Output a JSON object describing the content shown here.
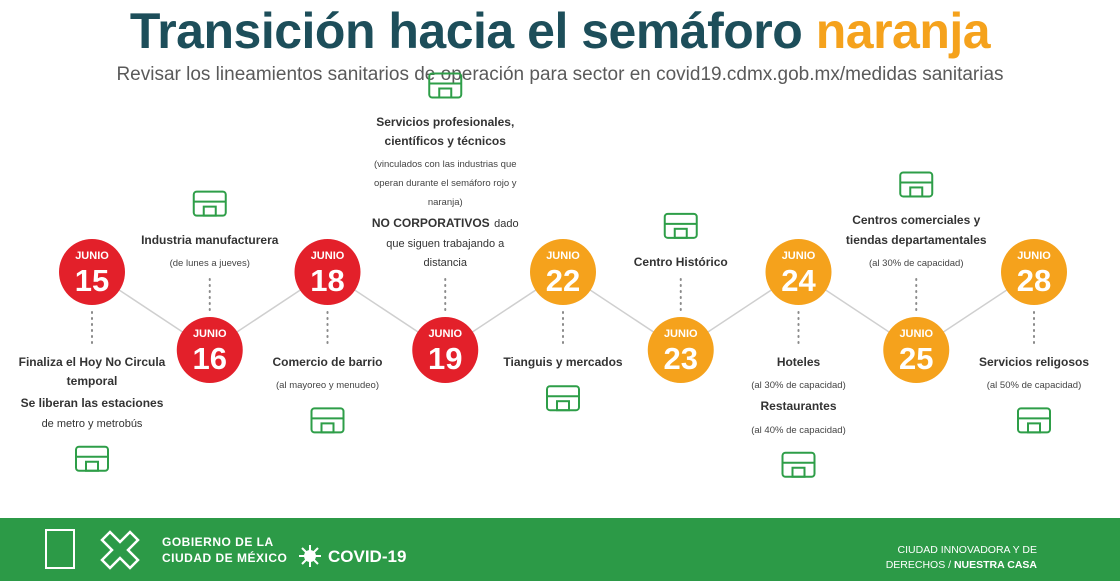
{
  "header": {
    "title": "Transición hacia el semáforo",
    "title_highlight": "naranja",
    "subtitle": "Revisar los lineamientos sanitarios de operación para sector en covid19.cdmx.gob.mx/medidas sanitarias"
  },
  "timeline": {
    "nodes": [
      {
        "month": "JUNIO",
        "day": "15",
        "color": "#e3202a",
        "lines": [
          [
            {
              "text": "Finaliza el Hoy No Circula temporal",
              "style": "b"
            }
          ],
          [
            {
              "text": "Se liberan las estaciones",
              "style": "b"
            },
            {
              "text": "de metro y metrobús",
              "style": "n"
            }
          ]
        ]
      },
      {
        "month": "JUNIO",
        "day": "16",
        "color": "#e3202a",
        "lines": [
          [
            {
              "text": "Industria manufacturera",
              "style": "b"
            }
          ],
          [
            {
              "text": "(de lunes a jueves)",
              "style": "s"
            }
          ]
        ]
      },
      {
        "month": "JUNIO",
        "day": "18",
        "color": "#e3202a",
        "lines": [
          [
            {
              "text": "Comercio de barrio",
              "style": "b"
            }
          ],
          [
            {
              "text": "(al mayoreo y menudeo)",
              "style": "s"
            }
          ]
        ]
      },
      {
        "month": "JUNIO",
        "day": "19",
        "color": "#e3202a",
        "lines": [
          [
            {
              "text": "Servicios profesionales, científicos y técnicos",
              "style": "b"
            }
          ],
          [
            {
              "text": "(vinculados con las industrias que operan durante el semáforo rojo y naranja)",
              "style": "s"
            }
          ],
          [
            {
              "text": "NO CORPORATIVOS",
              "style": "b"
            },
            {
              "text": "dado que siguen trabajando a distancia",
              "style": "n"
            }
          ]
        ]
      },
      {
        "month": "JUNIO",
        "day": "22",
        "color": "#f5a21c",
        "lines": [
          [
            {
              "text": "Tianguis y mercados",
              "style": "b"
            }
          ]
        ]
      },
      {
        "month": "JUNIO",
        "day": "23",
        "color": "#f5a21c",
        "lines": [
          [
            {
              "text": "Centro Histórico",
              "style": "b"
            }
          ]
        ]
      },
      {
        "month": "JUNIO",
        "day": "24",
        "color": "#f5a21c",
        "lines": [
          [
            {
              "text": "Hoteles",
              "style": "b"
            }
          ],
          [
            {
              "text": "(al 30% de capacidad)",
              "style": "s"
            }
          ],
          [
            {
              "text": "Restaurantes",
              "style": "b"
            }
          ],
          [
            {
              "text": "(al 40% de capacidad)",
              "style": "s"
            }
          ]
        ]
      },
      {
        "month": "JUNIO",
        "day": "25",
        "color": "#f5a21c",
        "lines": [
          [
            {
              "text": "Centros comerciales y tiendas departamentales",
              "style": "b"
            }
          ],
          [
            {
              "text": "(al 30% de capacidad)",
              "style": "s"
            }
          ]
        ]
      },
      {
        "month": "JUNIO",
        "day": "28",
        "color": "#f5a21c",
        "lines": [
          [
            {
              "text": "Servicios religosos",
              "style": "b"
            }
          ],
          [
            {
              "text": "(al 50% de capacidad)",
              "style": "s"
            }
          ]
        ]
      }
    ]
  },
  "footer": {
    "gov_line1": "GOBIERNO DE LA",
    "gov_line2": "CIUDAD DE MÉXICO",
    "covid": "COVID-19",
    "slogan_line1": "CIUDAD INNOVADORA Y DE",
    "slogan_line2a": "DERECHOS /",
    "slogan_line2b": "NUESTRA CASA"
  }
}
